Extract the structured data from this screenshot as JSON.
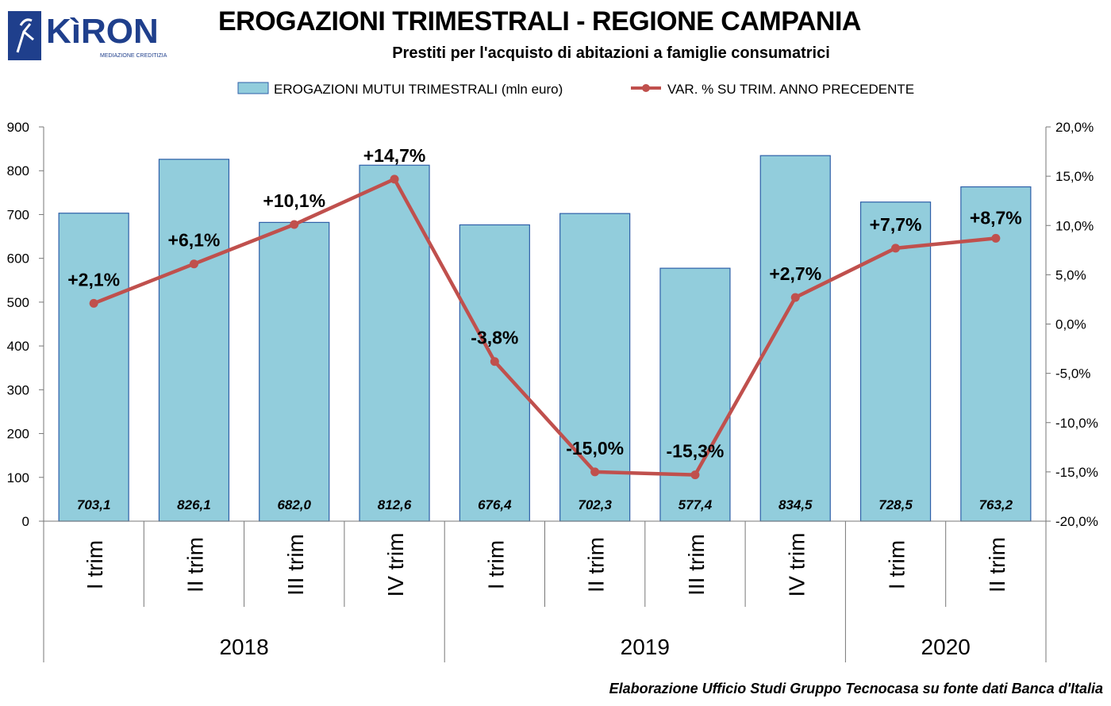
{
  "header": {
    "title": "EROGAZIONI TRIMESTRALI - REGIONE CAMPANIA",
    "subtitle": "Prestiti per l'acquisto di abitazioni a famiglie consumatrici",
    "logo_text": "KìRON",
    "logo_tagline": "MEDIAZIONE CREDITIZIA"
  },
  "footer": {
    "source": "Elaborazione  Ufficio Studi Gruppo Tecnocasa su fonte dati Banca d'Italia"
  },
  "colors": {
    "bar_fill": "#92CDDC",
    "bar_stroke": "#2E5FA8",
    "line": "#C0504D",
    "logo_blue": "#1F3F8C"
  },
  "chart_data": {
    "type": "bar",
    "categories": [
      "I trim",
      "II trim",
      "III trim",
      "IV trim",
      "I trim",
      "II trim",
      "III trim",
      "IV trim",
      "I trim",
      "II trim"
    ],
    "groups": [
      {
        "label": "2018",
        "count": 4
      },
      {
        "label": "2019",
        "count": 4
      },
      {
        "label": "2020",
        "count": 2
      }
    ],
    "series": [
      {
        "name": "EROGAZIONI MUTUI TRIMESTRALI (mln euro)",
        "type": "bar",
        "axis": "left",
        "values": [
          703.1,
          826.1,
          682.0,
          812.6,
          676.4,
          702.3,
          577.4,
          834.5,
          728.5,
          763.2
        ],
        "labels": [
          "703,1",
          "826,1",
          "682,0",
          "812,6",
          "676,4",
          "702,3",
          "577,4",
          "834,5",
          "728,5",
          "763,2"
        ]
      },
      {
        "name": "VAR. % SU TRIM. ANNO PRECEDENTE",
        "type": "line",
        "axis": "right",
        "values": [
          2.1,
          6.1,
          10.1,
          14.7,
          -3.8,
          -15.0,
          -15.3,
          2.7,
          7.7,
          8.7
        ],
        "labels": [
          "+2,1%",
          "+6,1%",
          "+10,1%",
          "+14,7%",
          "-3,8%",
          "-15,0%",
          "-15,3%",
          "+2,7%",
          "+7,7%",
          "+8,7%"
        ]
      }
    ],
    "y_left": {
      "range": [
        0,
        900
      ],
      "ticks": [
        0,
        100,
        200,
        300,
        400,
        500,
        600,
        700,
        800,
        900
      ],
      "tick_labels": [
        "0",
        "100",
        "200",
        "300",
        "400",
        "500",
        "600",
        "700",
        "800",
        "900"
      ]
    },
    "y_right": {
      "range": [
        -20,
        20
      ],
      "ticks": [
        -20,
        -15,
        -10,
        -5,
        0,
        5,
        10,
        15,
        20
      ],
      "tick_labels": [
        "-20,0%",
        "-15,0%",
        "-10,0%",
        "-5,0%",
        "0,0%",
        "5,0%",
        "10,0%",
        "15,0%",
        "20,0%"
      ]
    },
    "grid": false,
    "legend_position": "top"
  }
}
